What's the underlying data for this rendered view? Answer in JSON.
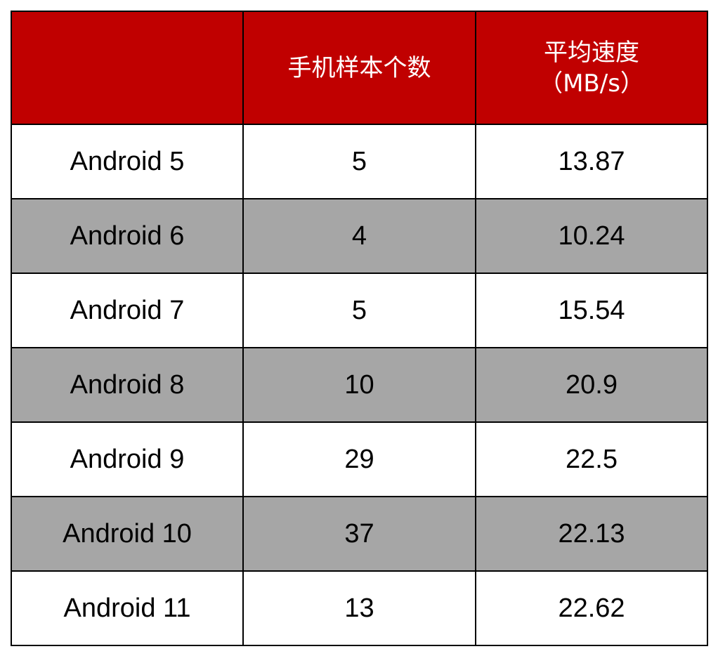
{
  "chart_data": {
    "type": "table",
    "columns": [
      "",
      "手机样本个数",
      "平均速度（MB/s）"
    ],
    "header_lines": {
      "col1": "",
      "col2": [
        "手机样本个数"
      ],
      "col3": [
        "平均速度",
        "（MB/s）"
      ]
    },
    "rows": [
      [
        "Android 5",
        "5",
        "13.87"
      ],
      [
        "Android 6",
        "4",
        "10.24"
      ],
      [
        "Android 7",
        "5",
        "15.54"
      ],
      [
        "Android 8",
        "10",
        "20.9"
      ],
      [
        "Android 9",
        "29",
        "22.5"
      ],
      [
        "Android 10",
        "37",
        "22.13"
      ],
      [
        "Android 11",
        "13",
        "22.62"
      ]
    ],
    "colors": {
      "header_bg": "#c00000",
      "header_text": "#ffffff",
      "shaded_row": "#a6a6a6",
      "plain_row": "#ffffff",
      "border": "#000000"
    },
    "row_shading": [
      "plain",
      "shaded",
      "plain",
      "shaded",
      "plain",
      "shaded",
      "plain"
    ]
  }
}
